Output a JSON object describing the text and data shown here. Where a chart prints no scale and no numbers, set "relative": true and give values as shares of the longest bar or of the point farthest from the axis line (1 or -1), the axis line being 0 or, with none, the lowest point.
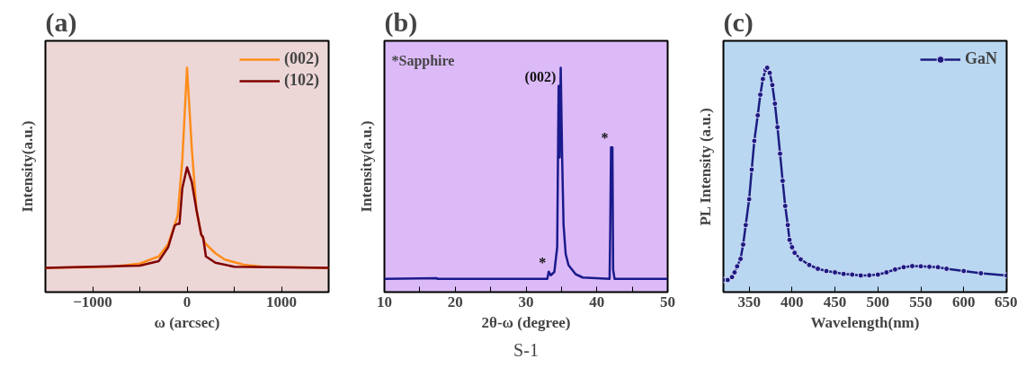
{
  "chart_data": [
    {
      "type": "line",
      "title": "(a)",
      "xlabel": "ω (arcsec)",
      "ylabel": "Intensity(a.u.)",
      "relative": true,
      "xlim": [
        -1500,
        1500
      ],
      "xticks": [
        {
          "value": -1000,
          "label": "−1000"
        },
        {
          "value": -500,
          "label": null
        },
        0,
        {
          "value": 500,
          "label": null
        },
        1000
      ],
      "legend": "top right",
      "grid": false,
      "series": [
        {
          "name": "(002)",
          "color": "#ff8c1a",
          "x": [
            -1500,
            -800,
            -500,
            -300,
            -200,
            -100,
            -50,
            0,
            50,
            100,
            150,
            200,
            300,
            400,
            600,
            800,
            1500
          ],
          "values": [
            0.108,
            0.113,
            0.127,
            0.159,
            0.214,
            0.339,
            0.588,
            1,
            0.643,
            0.366,
            0.256,
            0.214,
            0.173,
            0.145,
            0.122,
            0.113,
            0.108
          ]
        },
        {
          "name": "(102)",
          "color": "#800000",
          "x": [
            -1500,
            -500,
            -300,
            -200,
            -130,
            -100,
            -80,
            -50,
            0,
            50,
            100,
            150,
            170,
            200,
            300,
            500,
            1500
          ],
          "values": [
            0.108,
            0.118,
            0.138,
            0.2,
            0.297,
            0.304,
            0.304,
            0.463,
            0.556,
            0.491,
            0.366,
            0.256,
            0.245,
            0.159,
            0.131,
            0.113,
            0.108
          ]
        }
      ]
    },
    {
      "type": "line",
      "title": "(b)",
      "xlabel": "2θ-ω (degree)",
      "ylabel": "Intensity(a.u.)",
      "relative": true,
      "xlim": [
        10,
        50
      ],
      "xticks": [
        10,
        {
          "value": 15,
          "label": null
        },
        20,
        {
          "value": 25,
          "label": null
        },
        30,
        {
          "value": 35,
          "label": null
        },
        40,
        {
          "value": 45,
          "label": null
        },
        50
      ],
      "grid": false,
      "annotations": [
        "*Sapphire",
        "S-1",
        {
          "text": "(002)",
          "x": 34.6,
          "y": 0.919
        },
        {
          "text": "*",
          "x": 33.2,
          "y": 0.091
        },
        {
          "text": "*",
          "x": 42.0,
          "y": 0.645
        }
      ],
      "series": [
        {
          "color": "#1a1a8c",
          "x": [
            10,
            17.4,
            17.5,
            33.0,
            33.2,
            33.5,
            34.0,
            34.4,
            34.6,
            34.75,
            34.9,
            35.1,
            35.3,
            35.6,
            36,
            37,
            38,
            41.8,
            41.9,
            42.0,
            42.2,
            42.3,
            42.5,
            50
          ],
          "values": [
            0.059,
            0.062,
            0.059,
            0.059,
            0.091,
            0.075,
            0.09,
            0.2,
            0.919,
            0.6,
            1,
            0.6,
            0.3,
            0.17,
            0.12,
            0.08,
            0.065,
            0.059,
            0.3,
            0.645,
            0.645,
            0.1,
            0.059,
            0.059
          ]
        }
      ]
    },
    {
      "type": "line",
      "title": "(c)",
      "xlabel": "Wavelength(nm)",
      "ylabel": "PL Intensity (a.u.)",
      "relative": true,
      "xlim": [
        320,
        650
      ],
      "xticks": [
        350,
        400,
        450,
        500,
        550,
        600,
        650
      ],
      "legend": "top right",
      "grid": false,
      "marker": "circle",
      "series": [
        {
          "name": "GaN",
          "color": "#1c1c80",
          "x": [
            320,
            325,
            330,
            333,
            336,
            340,
            343,
            346,
            350,
            353,
            356,
            360,
            363,
            366,
            369,
            371,
            374,
            377,
            380,
            383,
            386,
            389,
            392,
            395,
            397,
            400,
            403,
            410,
            420,
            430,
            440,
            450,
            460,
            470,
            480,
            490,
            500,
            510,
            520,
            530,
            540,
            550,
            560,
            570,
            580,
            600,
            620,
            650
          ],
          "values": [
            0.054,
            0.054,
            0.067,
            0.088,
            0.115,
            0.148,
            0.212,
            0.299,
            0.414,
            0.546,
            0.674,
            0.788,
            0.88,
            0.95,
            0.99,
            1,
            0.977,
            0.923,
            0.84,
            0.735,
            0.617,
            0.496,
            0.384,
            0.299,
            0.233,
            0.2,
            0.175,
            0.146,
            0.121,
            0.104,
            0.094,
            0.088,
            0.081,
            0.078,
            0.074,
            0.075,
            0.078,
            0.088,
            0.101,
            0.111,
            0.116,
            0.115,
            0.113,
            0.111,
            0.104,
            0.094,
            0.084,
            0.074
          ]
        }
      ]
    }
  ]
}
